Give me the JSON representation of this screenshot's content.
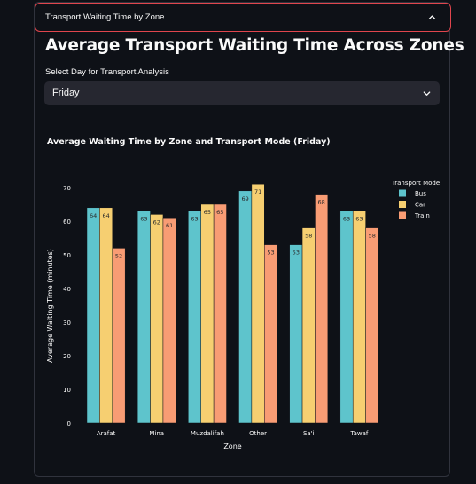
{
  "expander": {
    "title": "Transport Waiting Time by Zone",
    "icon": "chevron-up-icon"
  },
  "page": {
    "title": "Average Transport Waiting Time Across Zones"
  },
  "select": {
    "label": "Select Day for Transport Analysis",
    "value": "Friday",
    "icon": "chevron-down-icon"
  },
  "colors": {
    "background": "#0e1117",
    "expander_border": "#e0454d",
    "select_bg": "#262730",
    "bus": "#5ec4cc",
    "car": "#f6cf71",
    "train": "#f89c74"
  },
  "chart_data": {
    "type": "bar",
    "title": "Average Waiting Time by Zone and Transport Mode (Friday)",
    "xlabel": "Zone",
    "ylabel": "Average Waiting Time (minutes)",
    "categories": [
      "Arafat",
      "Mina",
      "Muzdalifah",
      "Other",
      "Sa'i",
      "Tawaf"
    ],
    "series": [
      {
        "name": "Bus",
        "values": [
          64,
          63,
          63,
          69,
          53,
          63
        ],
        "labels": [
          "64",
          "63",
          "63",
          "69",
          "53",
          "63"
        ]
      },
      {
        "name": "Car",
        "values": [
          64,
          62,
          65,
          71,
          58,
          63
        ],
        "labels": [
          "64",
          "62",
          "65",
          "71",
          "58",
          "63"
        ]
      },
      {
        "name": "Train",
        "values": [
          52,
          61,
          65,
          53,
          68,
          58
        ],
        "labels": [
          "52",
          "61",
          "65",
          "53",
          "68",
          "58"
        ]
      }
    ],
    "ylim": [
      0,
      75
    ],
    "yticks": [
      "0",
      "10",
      "20",
      "30",
      "40",
      "50",
      "60",
      "70"
    ],
    "legend": {
      "title": "Transport Mode",
      "placement": "top-right"
    },
    "grid": false
  }
}
